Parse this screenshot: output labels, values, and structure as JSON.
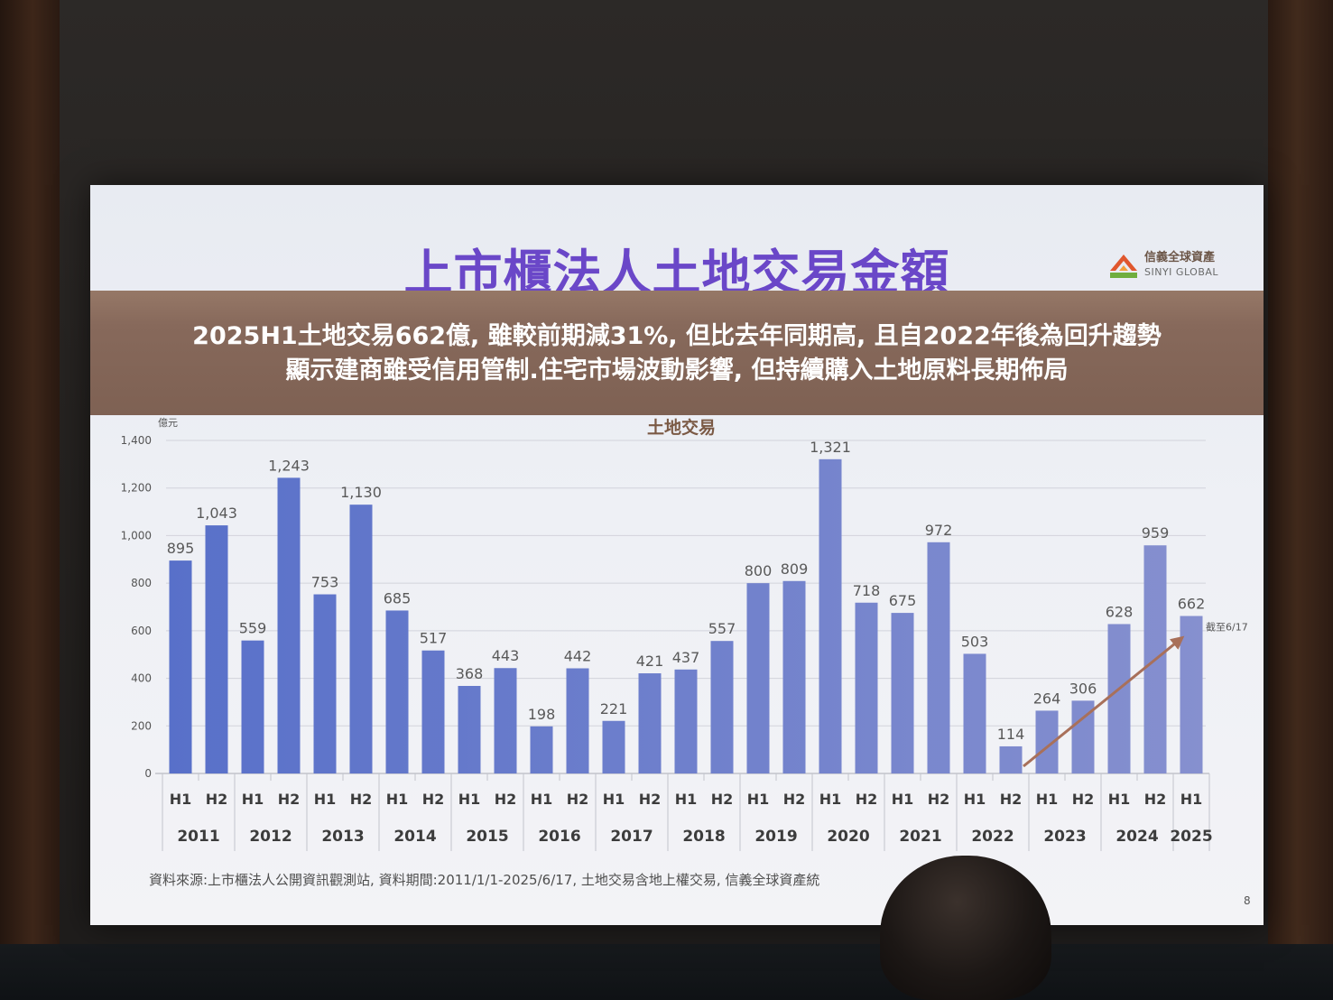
{
  "slide": {
    "title": "上市櫃法人土地交易金額",
    "logo": {
      "name_zh": "信義全球資產",
      "name_en": "SINYI GLOBAL",
      "icon": "sinyi-roof-logo-icon"
    },
    "banner": {
      "line1": "2025H1土地交易662億, 雖較前期減31%, 但比去年同期高, 且自2022年後為回升趨勢",
      "line2": "顯示建商雖受信用管制.住宅市場波動影響, 但持續購入土地原料長期佈局"
    },
    "source_note": "資料來源:上市櫃法人公開資訊觀測站, 資料期間:2011/1/1-2025/6/17, 土地交易含地上權交易, 信義全球資產統",
    "page_number": "8"
  },
  "colors": {
    "title": "#6a47c8",
    "banner": "#86685a",
    "bar_left": "#5870c9",
    "bar_right": "#8690cf",
    "trend_arrow": "#a8705a",
    "chart_title": "#7b5a45"
  },
  "chart_data": {
    "type": "bar",
    "title": "土地交易",
    "ylabel": "億元",
    "xlabel": "",
    "ylim": [
      0,
      1400
    ],
    "yticks": [
      0,
      200,
      400,
      600,
      800,
      1000,
      1200,
      1400
    ],
    "ytick_labels": [
      "0",
      "200",
      "400",
      "600",
      "800",
      "1,000",
      "1,200",
      "1,400"
    ],
    "grid": true,
    "categories": [
      {
        "year": "2011",
        "halves": [
          "H1",
          "H2"
        ],
        "values": [
          895,
          1043
        ],
        "labels": [
          "895",
          "1,043"
        ]
      },
      {
        "year": "2012",
        "halves": [
          "H1",
          "H2"
        ],
        "values": [
          559,
          1243
        ],
        "labels": [
          "559",
          "1,243"
        ]
      },
      {
        "year": "2013",
        "halves": [
          "H1",
          "H2"
        ],
        "values": [
          753,
          1130
        ],
        "labels": [
          "753",
          "1,130"
        ]
      },
      {
        "year": "2014",
        "halves": [
          "H1",
          "H2"
        ],
        "values": [
          685,
          517
        ],
        "labels": [
          "685",
          "517"
        ]
      },
      {
        "year": "2015",
        "halves": [
          "H1",
          "H2"
        ],
        "values": [
          368,
          443
        ],
        "labels": [
          "368",
          "443"
        ]
      },
      {
        "year": "2016",
        "halves": [
          "H1",
          "H2"
        ],
        "values": [
          198,
          442
        ],
        "labels": [
          "198",
          "442"
        ]
      },
      {
        "year": "2017",
        "halves": [
          "H1",
          "H2"
        ],
        "values": [
          221,
          421
        ],
        "labels": [
          "221",
          "421"
        ]
      },
      {
        "year": "2018",
        "halves": [
          "H1",
          "H2"
        ],
        "values": [
          437,
          557
        ],
        "labels": [
          "437",
          "557"
        ]
      },
      {
        "year": "2019",
        "halves": [
          "H1",
          "H2"
        ],
        "values": [
          800,
          809
        ],
        "labels": [
          "800",
          "809"
        ]
      },
      {
        "year": "2020",
        "halves": [
          "H1",
          "H2"
        ],
        "values": [
          1321,
          718
        ],
        "labels": [
          "1,321",
          "718"
        ]
      },
      {
        "year": "2021",
        "halves": [
          "H1",
          "H2"
        ],
        "values": [
          675,
          972
        ],
        "labels": [
          "675",
          "972"
        ]
      },
      {
        "year": "2022",
        "halves": [
          "H1",
          "H2"
        ],
        "values": [
          503,
          114
        ],
        "labels": [
          "503",
          "114"
        ]
      },
      {
        "year": "2023",
        "halves": [
          "H1",
          "H2"
        ],
        "values": [
          264,
          306
        ],
        "labels": [
          "264",
          "306"
        ]
      },
      {
        "year": "2024",
        "halves": [
          "H1",
          "H2"
        ],
        "values": [
          628,
          959
        ],
        "labels": [
          "628",
          "959"
        ]
      },
      {
        "year": "2025",
        "halves": [
          "H1"
        ],
        "values": [
          662
        ],
        "labels": [
          "662"
        ]
      }
    ],
    "annotation": "截至6/17"
  }
}
